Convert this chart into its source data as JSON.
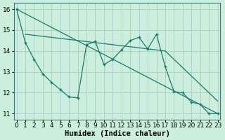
{
  "xlabel": "Humidex (Indice chaleur)",
  "bg_color": "#cceedd",
  "line_color": "#1a7a6e",
  "grid_color": "#aacccc",
  "line_jagged_x": [
    0,
    1,
    2,
    3,
    4,
    5,
    6,
    7,
    8,
    9,
    10,
    11,
    12,
    13,
    14,
    15,
    16,
    17,
    18,
    19,
    20,
    21,
    22,
    23
  ],
  "line_jagged_y": [
    16.0,
    14.4,
    13.6,
    12.9,
    12.5,
    12.15,
    11.8,
    11.75,
    14.3,
    14.45,
    13.35,
    13.6,
    14.05,
    14.5,
    14.65,
    14.1,
    14.8,
    13.25,
    12.05,
    12.0,
    11.55,
    11.45,
    11.0,
    11.0
  ],
  "line_upper_x": [
    1,
    2,
    3,
    4,
    5,
    6,
    7,
    8,
    9,
    10,
    11,
    12,
    13,
    14,
    15,
    16,
    17,
    18,
    19,
    20,
    21,
    22,
    23
  ],
  "line_upper_y": [
    14.8,
    14.75,
    14.7,
    14.65,
    14.6,
    14.55,
    14.5,
    14.45,
    14.4,
    14.35,
    14.3,
    14.25,
    14.2,
    14.15,
    14.1,
    14.05,
    14.0,
    13.6,
    13.2,
    12.8,
    12.4,
    12.0,
    11.6
  ],
  "line_trend_x": [
    0,
    23
  ],
  "line_trend_y": [
    16.0,
    11.0
  ],
  "xlim": [
    -0.3,
    23.3
  ],
  "ylim": [
    10.7,
    16.3
  ],
  "yticks": [
    11,
    12,
    13,
    14,
    15,
    16
  ],
  "xticks": [
    0,
    1,
    2,
    3,
    4,
    5,
    6,
    7,
    8,
    9,
    10,
    11,
    12,
    13,
    14,
    15,
    16,
    17,
    18,
    19,
    20,
    21,
    22,
    23
  ],
  "font_size": 6.5,
  "xlabel_fontsize": 7.5
}
